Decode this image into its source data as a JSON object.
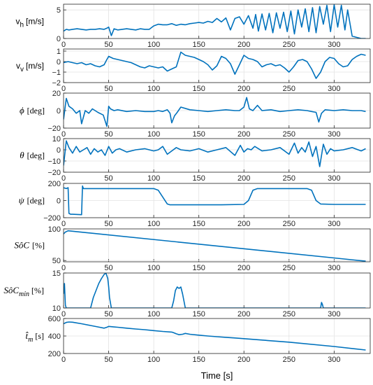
{
  "chart_data": [
    {
      "type": "line",
      "ylabel": "v_h [m/s]",
      "xlim": [
        0,
        340
      ],
      "ylim": [
        0,
        6
      ],
      "xticks": [
        "0",
        "50",
        "100",
        "150",
        "200",
        "250",
        "300"
      ],
      "yticks": [
        "0",
        "5"
      ],
      "grid": true,
      "series": [
        {
          "color": "#0072BD",
          "x": [
            0,
            3,
            6,
            10,
            15,
            20,
            25,
            30,
            35,
            40,
            45,
            48,
            50,
            53,
            56,
            60,
            65,
            70,
            75,
            80,
            85,
            90,
            95,
            100,
            105,
            110,
            115,
            120,
            125,
            130,
            135,
            140,
            145,
            150,
            155,
            160,
            165,
            170,
            175,
            180,
            185,
            190,
            195,
            200,
            205,
            210,
            213,
            216,
            220,
            224,
            228,
            232,
            236,
            240,
            244,
            248,
            252,
            256,
            260,
            264,
            268,
            272,
            276,
            280,
            284,
            288,
            292,
            296,
            300,
            304,
            308,
            312,
            315,
            320,
            325,
            330,
            335
          ],
          "y": [
            1.3,
            1.6,
            1.5,
            1.6,
            1.7,
            1.6,
            1.5,
            1.6,
            1.6,
            1.7,
            1.6,
            1.8,
            2.0,
            0.5,
            1.7,
            1.5,
            1.6,
            1.7,
            1.6,
            1.5,
            1.7,
            1.6,
            1.6,
            2.2,
            2.5,
            2.4,
            2.4,
            2.6,
            2.3,
            2.5,
            2.4,
            2.6,
            2.7,
            2.8,
            2.7,
            3.0,
            2.8,
            3.5,
            2.9,
            3.6,
            1.5,
            3.5,
            3.8,
            2.5,
            4.0,
            1.8,
            4.2,
            1.3,
            4.3,
            1.5,
            4.4,
            1.0,
            4.5,
            1.8,
            4.6,
            1.2,
            4.8,
            0.8,
            5.0,
            2.0,
            5.2,
            1.2,
            5.4,
            1.0,
            5.6,
            2.5,
            5.8,
            1.2,
            5.9,
            2.0,
            5.8,
            1.5,
            5.0,
            0.4,
            0.2,
            0.0,
            0.0
          ]
        }
      ]
    },
    {
      "type": "line",
      "ylabel": "v_v [m/s]",
      "xlim": [
        0,
        340
      ],
      "ylim": [
        -2,
        1.2
      ],
      "xticks": [
        "0",
        "50",
        "100",
        "150",
        "200",
        "250",
        "300"
      ],
      "yticks": [
        "-2",
        "-1",
        "0",
        "1"
      ],
      "grid": true,
      "series": [
        {
          "color": "#0072BD",
          "x": [
            0,
            5,
            10,
            15,
            20,
            25,
            30,
            35,
            40,
            45,
            48,
            50,
            55,
            60,
            65,
            70,
            75,
            80,
            85,
            90,
            95,
            100,
            105,
            110,
            115,
            120,
            125,
            130,
            135,
            140,
            145,
            150,
            155,
            160,
            165,
            170,
            175,
            180,
            185,
            190,
            195,
            200,
            205,
            210,
            215,
            220,
            225,
            230,
            235,
            240,
            245,
            250,
            255,
            260,
            265,
            270,
            275,
            280,
            285,
            290,
            295,
            300,
            305,
            310,
            315,
            320,
            325,
            330,
            335
          ],
          "y": [
            -0.1,
            0.0,
            -0.1,
            -0.2,
            -0.1,
            -0.3,
            -0.2,
            -0.4,
            -0.5,
            -0.3,
            0.2,
            0.5,
            0.3,
            0.2,
            0.1,
            0.0,
            -0.1,
            -0.3,
            -0.5,
            -0.6,
            -0.4,
            -0.5,
            -0.6,
            -0.5,
            -0.9,
            -0.7,
            -0.5,
            0.9,
            0.6,
            0.5,
            0.4,
            0.2,
            0.0,
            -0.3,
            -0.8,
            -0.4,
            0.5,
            0.3,
            -0.2,
            -1.2,
            -0.3,
            0.6,
            0.3,
            0.2,
            0.0,
            -0.5,
            -0.3,
            -0.2,
            -0.4,
            -0.3,
            -0.6,
            -1.0,
            -0.5,
            0.1,
            0.2,
            0.0,
            -0.7,
            -1.6,
            -1.0,
            0.0,
            0.4,
            0.3,
            -0.2,
            -0.5,
            -0.4,
            0.2,
            0.5,
            0.7,
            0.6
          ]
        }
      ]
    },
    {
      "type": "line",
      "ylabel": "ϕ [deg]",
      "xlim": [
        0,
        340
      ],
      "ylim": [
        -20,
        20
      ],
      "xticks": [
        "0",
        "50",
        "100",
        "150",
        "200",
        "250",
        "300"
      ],
      "yticks": [
        "-20",
        "0",
        "20"
      ],
      "grid": true,
      "series": [
        {
          "color": "#0072BD",
          "x": [
            0,
            3,
            6,
            10,
            14,
            18,
            20,
            24,
            28,
            32,
            38,
            44,
            48,
            50,
            52,
            56,
            60,
            70,
            80,
            90,
            100,
            105,
            110,
            115,
            118,
            120,
            123,
            126,
            130,
            140,
            150,
            160,
            170,
            180,
            190,
            195,
            200,
            203,
            206,
            210,
            215,
            220,
            230,
            240,
            250,
            260,
            270,
            275,
            280,
            283,
            286,
            290,
            300,
            310,
            320,
            330,
            335
          ],
          "y": [
            -10,
            14,
            5,
            2,
            -3,
            0,
            -15,
            0,
            -3,
            2,
            -2,
            -5,
            -18,
            5,
            2,
            0,
            1,
            -1,
            0,
            -1,
            -1,
            0,
            -1,
            1,
            -3,
            -14,
            -6,
            -2,
            4,
            1,
            0,
            -1,
            0,
            1,
            0,
            0,
            4,
            15,
            2,
            0,
            6,
            0,
            1,
            -1,
            0,
            1,
            0,
            -1,
            -2,
            -13,
            -3,
            1,
            0,
            1,
            0,
            0,
            -1
          ]
        }
      ]
    },
    {
      "type": "line",
      "ylabel": "θ [deg]",
      "xlim": [
        0,
        340
      ],
      "ylim": [
        -20,
        10
      ],
      "xticks": [
        "0",
        "50",
        "100",
        "150",
        "200",
        "250",
        "300"
      ],
      "yticks": [
        "-20",
        "-10",
        "0",
        "10"
      ],
      "grid": true,
      "series": [
        {
          "color": "#0072BD",
          "x": [
            0,
            3,
            6,
            10,
            14,
            18,
            22,
            26,
            30,
            34,
            38,
            42,
            46,
            50,
            54,
            58,
            62,
            70,
            80,
            90,
            100,
            105,
            110,
            115,
            120,
            125,
            130,
            140,
            150,
            160,
            170,
            180,
            190,
            196,
            200,
            204,
            208,
            212,
            220,
            230,
            240,
            250,
            256,
            260,
            264,
            268,
            272,
            276,
            280,
            284,
            288,
            292,
            296,
            300,
            310,
            320,
            330,
            335
          ],
          "y": [
            -14,
            8,
            2,
            -3,
            3,
            -2,
            0,
            2,
            -4,
            1,
            -2,
            0,
            -5,
            3,
            -3,
            0,
            1,
            -2,
            0,
            1,
            -1,
            0,
            3,
            -4,
            -1,
            2,
            0,
            -1,
            1,
            -2,
            0,
            2,
            -5,
            4,
            -2,
            1,
            0,
            3,
            -1,
            0,
            2,
            -4,
            6,
            -3,
            2,
            -2,
            7,
            -6,
            3,
            -15,
            5,
            -4,
            1,
            -1,
            0,
            2,
            -1,
            1
          ]
        }
      ]
    },
    {
      "type": "line",
      "ylabel": "ψ [deg]",
      "xlim": [
        0,
        340
      ],
      "ylim": [
        -200,
        200
      ],
      "xticks": [
        "0",
        "50",
        "100",
        "150",
        "200",
        "250",
        "300"
      ],
      "yticks": [
        "-200",
        "0",
        "200"
      ],
      "grid": true,
      "series": [
        {
          "color": "#0072BD",
          "x": [
            0,
            3,
            5,
            6,
            8,
            10,
            20,
            21,
            22,
            26,
            30,
            40,
            50,
            60,
            70,
            80,
            90,
            100,
            105,
            110,
            115,
            118,
            125,
            150,
            175,
            200,
            205,
            210,
            215,
            220,
            250,
            270,
            275,
            280,
            285,
            300,
            320,
            335
          ],
          "y": [
            150,
            140,
            150,
            -150,
            -160,
            -160,
            -165,
            170,
            140,
            140,
            140,
            140,
            140,
            140,
            140,
            140,
            140,
            140,
            120,
            40,
            -40,
            -50,
            -50,
            -50,
            -50,
            -45,
            0,
            120,
            140,
            140,
            140,
            140,
            120,
            0,
            -40,
            -45,
            -45,
            -45
          ]
        }
      ]
    },
    {
      "type": "line",
      "ylabel": "SôC [%]",
      "xlim": [
        0,
        340
      ],
      "ylim": [
        48,
        100
      ],
      "xticks": [
        "0",
        "50",
        "100",
        "150",
        "200",
        "250",
        "300"
      ],
      "yticks": [
        "50",
        "100"
      ],
      "grid": true,
      "series": [
        {
          "color": "#0072BD",
          "x": [
            0,
            2,
            5,
            335
          ],
          "y": [
            92,
            95,
            97,
            49
          ]
        }
      ]
    },
    {
      "type": "line",
      "ylabel": "SôC_min [%]",
      "xlim": [
        0,
        340
      ],
      "ylim": [
        10,
        15
      ],
      "xticks": [
        "0",
        "50",
        "100",
        "150",
        "200",
        "250",
        "300"
      ],
      "yticks": [
        "10",
        "15"
      ],
      "grid": true,
      "series": [
        {
          "color": "#0072BD",
          "x": [
            0,
            1,
            2,
            3,
            4,
            5,
            30,
            33,
            36,
            39,
            42,
            45,
            47,
            49,
            50,
            51,
            53,
            120,
            122,
            124,
            126,
            128,
            130,
            132,
            135,
            285,
            286,
            287,
            288,
            335
          ],
          "y": [
            12,
            13.5,
            10.4,
            10,
            10,
            10,
            10,
            11.5,
            12.5,
            13.5,
            14.2,
            14.8,
            15,
            14.2,
            13,
            11.5,
            10,
            10,
            11,
            12.5,
            13,
            12.8,
            13,
            12,
            10,
            10,
            10.8,
            10.5,
            10,
            10
          ]
        }
      ]
    },
    {
      "type": "line",
      "ylabel": "t̂_m [s]",
      "xlim": [
        0,
        340
      ],
      "ylim": [
        200,
        600
      ],
      "xticks": [
        "0",
        "50",
        "100",
        "150",
        "200",
        "250",
        "300"
      ],
      "yticks": [
        "200",
        "400",
        "600"
      ],
      "grid": true,
      "xlabel": "Time [s]",
      "series": [
        {
          "color": "#0072BD",
          "x": [
            0,
            3,
            6,
            10,
            20,
            30,
            40,
            45,
            48,
            50,
            55,
            60,
            70,
            80,
            90,
            100,
            110,
            120,
            122,
            125,
            128,
            132,
            135,
            140,
            150,
            160,
            170,
            180,
            190,
            200,
            250,
            300,
            335
          ],
          "y": [
            540,
            555,
            560,
            558,
            540,
            520,
            500,
            490,
            500,
            510,
            505,
            500,
            490,
            480,
            472,
            462,
            452,
            445,
            438,
            425,
            415,
            420,
            430,
            420,
            410,
            400,
            392,
            385,
            378,
            370,
            330,
            280,
            240
          ]
        }
      ]
    }
  ]
}
